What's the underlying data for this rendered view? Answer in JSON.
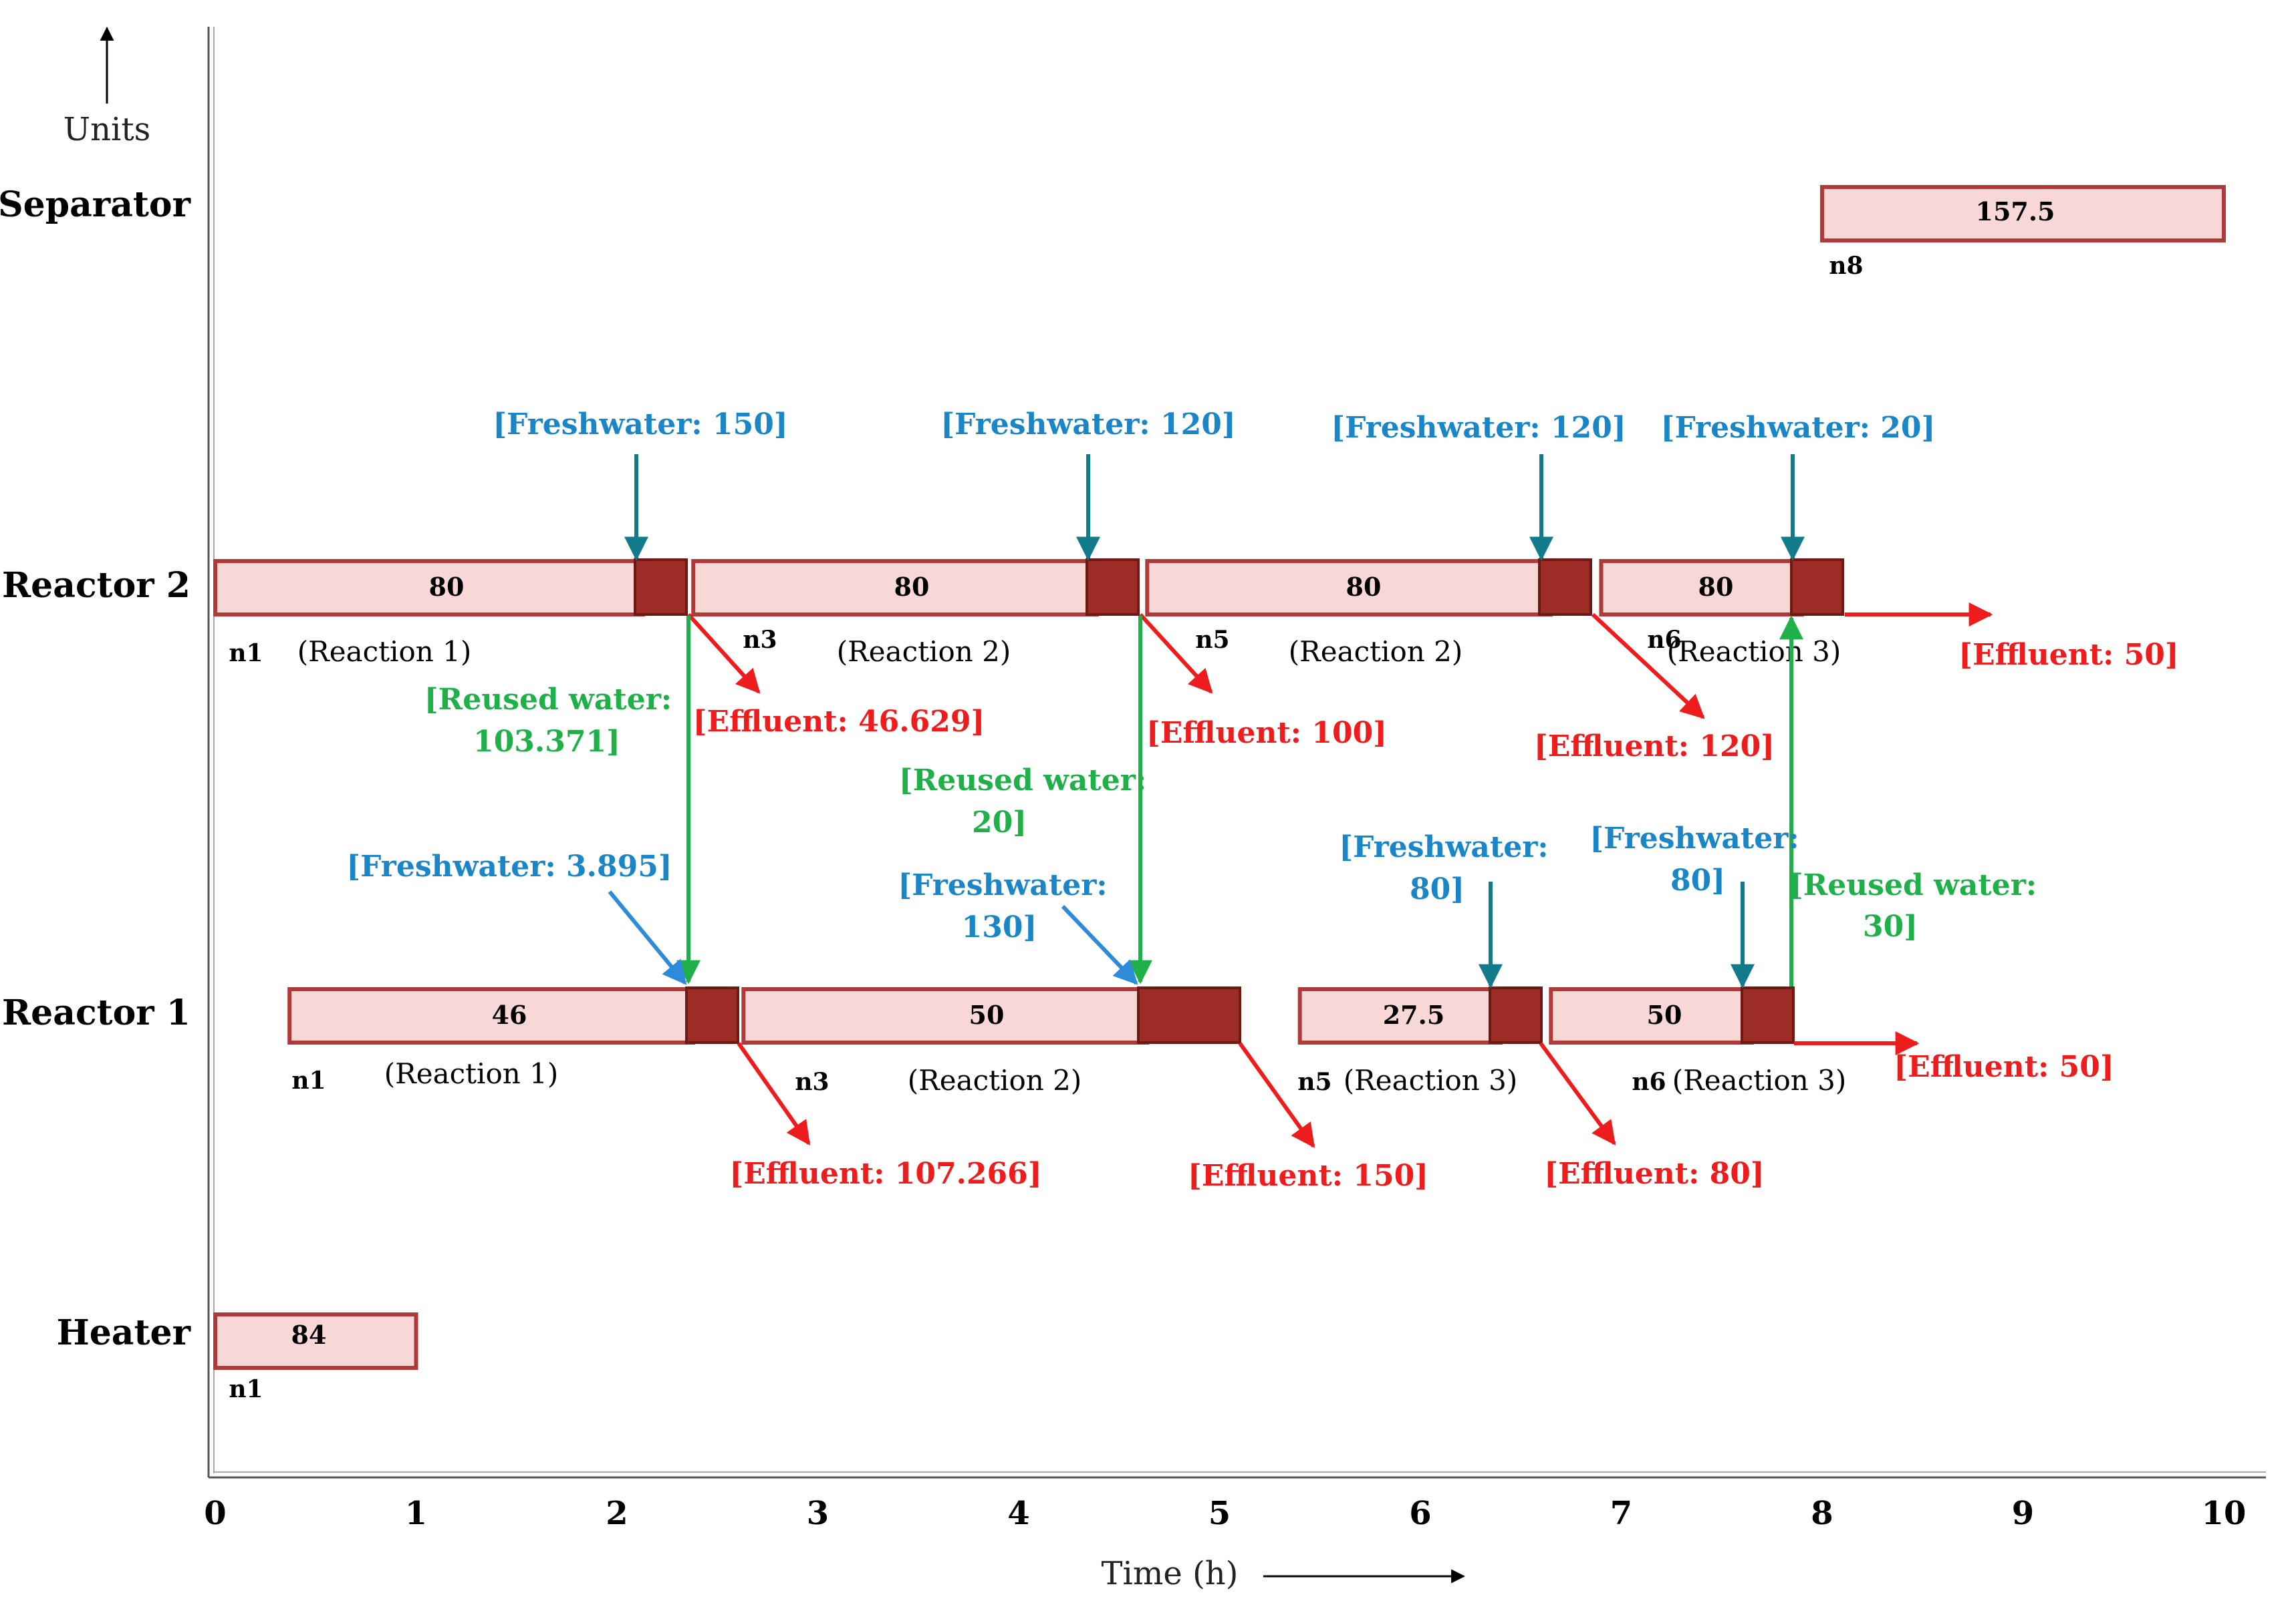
{
  "axes": {
    "y_label": "Units",
    "x_label": "Time (h)",
    "x_ticks": [
      "0",
      "1",
      "2",
      "3",
      "4",
      "5",
      "6",
      "7",
      "8",
      "9",
      "10"
    ]
  },
  "units": {
    "separator": "Separator",
    "reactor2": "Reactor 2",
    "reactor1": "Reactor 1",
    "heater": "Heater"
  },
  "bars": {
    "separator": {
      "value": "157.5",
      "start": 8.0,
      "end": 10.0
    },
    "r2_a": {
      "value": "80",
      "start": 0.0,
      "end": 2.13
    },
    "r2_b": {
      "value": "80",
      "start": 2.38,
      "end": 4.39
    },
    "r2_c": {
      "value": "80",
      "start": 4.64,
      "end": 6.65
    },
    "r2_d": {
      "value": "80",
      "start": 6.9,
      "end": 7.9
    },
    "r1_a": {
      "value": "46",
      "start": 0.37,
      "end": 2.38
    },
    "r1_b": {
      "value": "50",
      "start": 2.63,
      "end": 4.64
    },
    "r1_c": {
      "value": "27.5",
      "start": 5.4,
      "end": 6.4
    },
    "r1_d": {
      "value": "50",
      "start": 6.65,
      "end": 7.65
    },
    "heater": {
      "value": "84",
      "start": 0.0,
      "end": 1.0
    }
  },
  "nodes": {
    "sep_n8": "n8",
    "r2_n1": "n1",
    "r2_n3": "n3",
    "r2_n5": "n5",
    "r2_n6": "n6",
    "r1_n1": "n1",
    "r1_n3": "n3",
    "r1_n5": "n5",
    "r1_n6": "n6",
    "h_n1": "n1"
  },
  "reactions": {
    "r2_1": "(Reaction 1)",
    "r2_2": "(Reaction 2)",
    "r2_3": "(Reaction 2)",
    "r2_4": "(Reaction 3)",
    "r1_1": "(Reaction 1)",
    "r1_2": "(Reaction 2)",
    "r1_3": "(Reaction 3)",
    "r1_4": "(Reaction 3)"
  },
  "freshwater": {
    "r2_1": "[Freshwater: 150]",
    "r2_2": "[Freshwater: 120]",
    "r2_3": "[Freshwater: 120]",
    "r2_4": "[Freshwater: 20]",
    "r1_1": "[Freshwater: 3.895]",
    "r1_2_l1": "[Freshwater:",
    "r1_2_l2": "130]",
    "r1_3_l1": "[Freshwater:",
    "r1_3_l2": "80]",
    "r1_4_l1": "[Freshwater:",
    "r1_4_l2": "80]"
  },
  "effluent": {
    "r2_1": "[Effluent: 46.629]",
    "r2_2": "[Effluent: 100]",
    "r2_3": "[Effluent: 120]",
    "r2_4": "[Effluent: 50]",
    "r1_1": "[Effluent: 107.266]",
    "r1_2": "[Effluent: 150]",
    "r1_3": "[Effluent: 80]",
    "r1_4": "[Effluent: 50]"
  },
  "reused": {
    "a_l1": "[Reused water:",
    "a_l2": "103.371]",
    "b_l1": "[Reused water:",
    "b_l2": "20]",
    "c_l1": "[Reused water:",
    "c_l2": "30]"
  },
  "colors": {
    "bar_fill": "#f8d7d7",
    "bar_stroke": "#b03a3a",
    "block_fill": "#9c2c25",
    "freshwater": "#1a86c8",
    "freshwater_arrow": "#117a8b",
    "effluent": "#ee1c1c",
    "reused": "#1fb04a"
  }
}
